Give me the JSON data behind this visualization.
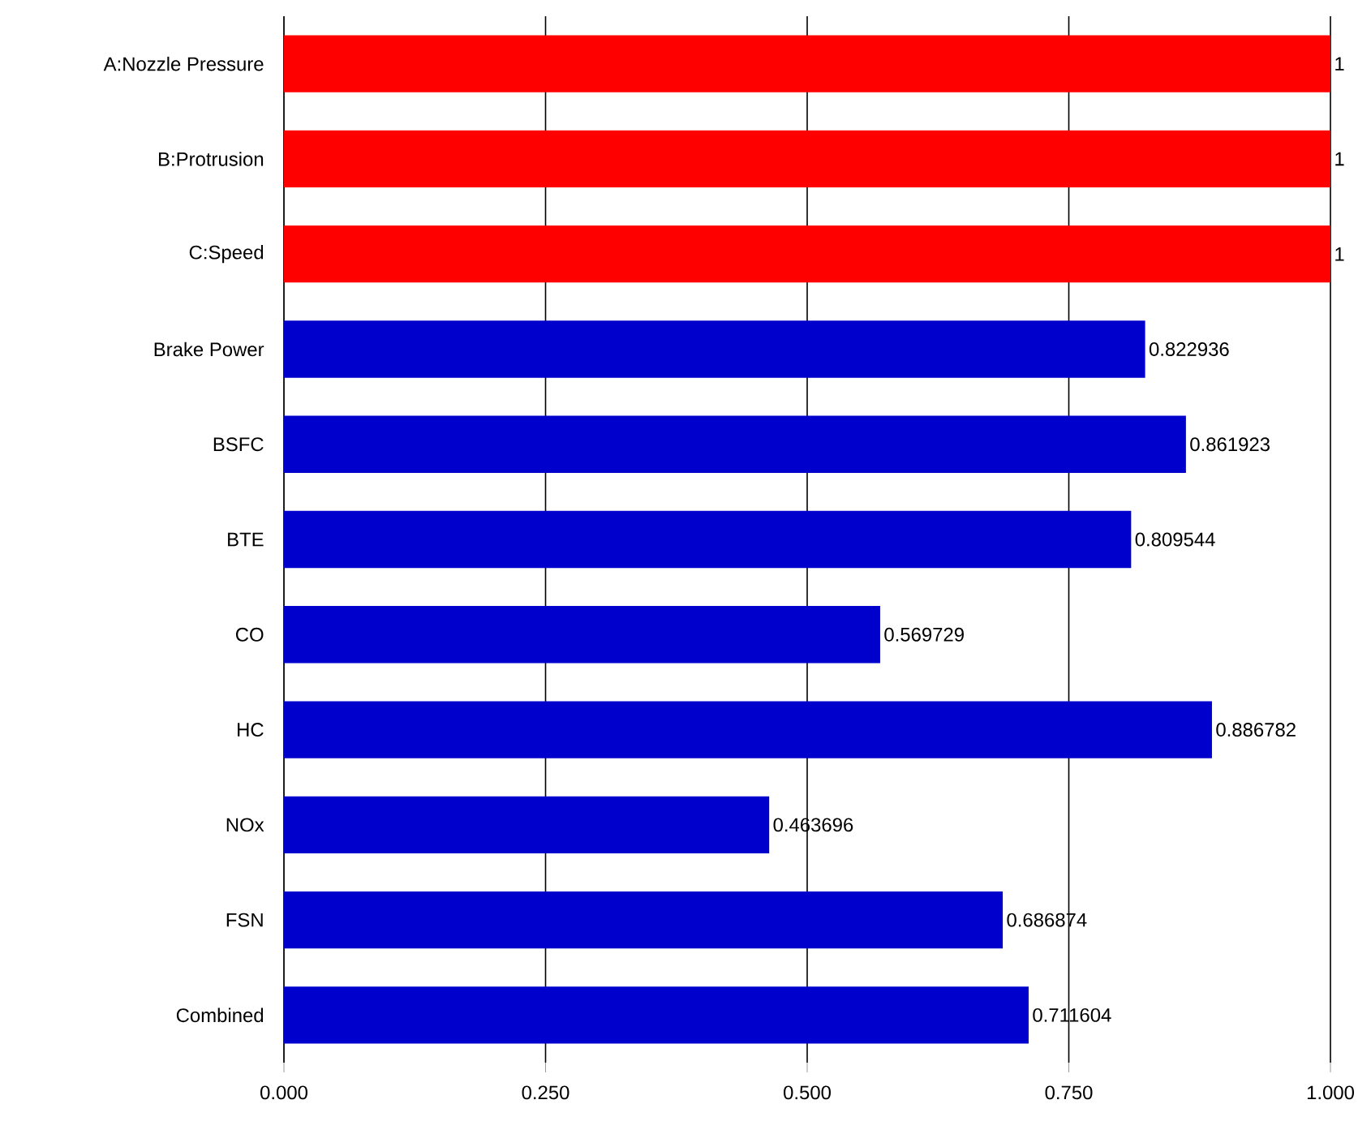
{
  "chart_data": {
    "type": "bar",
    "orientation": "horizontal",
    "categories": [
      "A:Nozzle Pressure",
      "B:Protrusion",
      "C:Speed",
      "Brake Power",
      "BSFC",
      "BTE",
      "CO",
      "HC",
      "NOx",
      "FSN",
      "Combined"
    ],
    "values": [
      1,
      1,
      1,
      0.822936,
      0.861923,
      0.809544,
      0.569729,
      0.886782,
      0.463696,
      0.686874,
      0.711604
    ],
    "colors": [
      "#ff0000",
      "#ff0000",
      "#ff0000",
      "#0000cc",
      "#0000cc",
      "#0000cc",
      "#0000cc",
      "#0000cc",
      "#0000cc",
      "#0000cc",
      "#0000cc"
    ],
    "xlim": [
      0,
      1
    ],
    "xticks": [
      {
        "value": 0,
        "label": "0.000"
      },
      {
        "value": 0.25,
        "label": "0.250"
      },
      {
        "value": 0.5,
        "label": "0.500"
      },
      {
        "value": 0.75,
        "label": "0.750"
      },
      {
        "value": 1,
        "label": "1.000"
      }
    ],
    "grid": "x",
    "data_labels": true
  }
}
